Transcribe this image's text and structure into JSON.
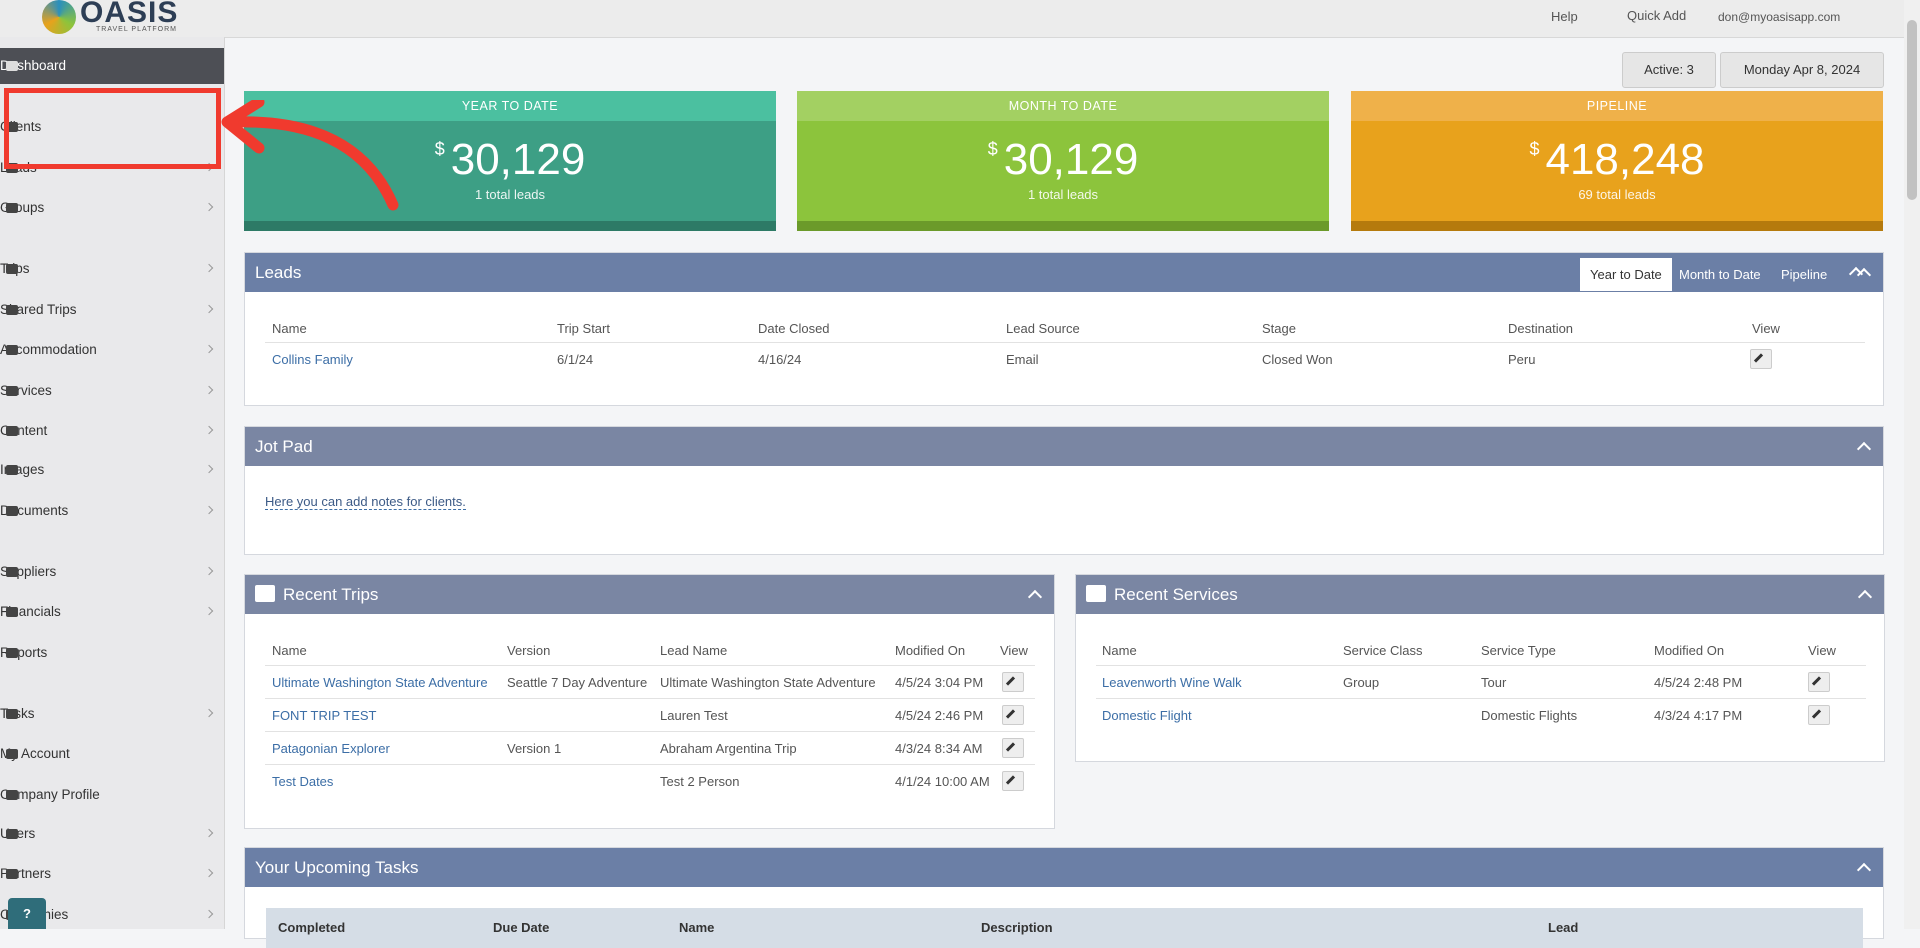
{
  "header": {
    "logo": "OASIS",
    "logo_sub": "TRAVEL PLATFORM",
    "help": "Help",
    "quick_add": "Quick Add",
    "user": "don@myoasisapp.com"
  },
  "sidebar": {
    "items": [
      "Dashboard",
      "Clients",
      "Leads",
      "Groups",
      "Trips",
      "Shared Trips",
      "Accommodation",
      "Services",
      "Content",
      "Images",
      "Documents",
      "Suppliers",
      "Financials",
      "Reports",
      "Tasks",
      "My Account",
      "Company Profile",
      "Users",
      "Partners",
      "Companies"
    ]
  },
  "toolbar": {
    "active": "Active: 3",
    "date": "Monday Apr 8, 2024"
  },
  "cards": [
    {
      "title": "YEAR TO DATE",
      "currency": "$",
      "amount": "30,129",
      "sub": "1 total leads"
    },
    {
      "title": "MONTH TO DATE",
      "currency": "$",
      "amount": "30,129",
      "sub": "1 total leads"
    },
    {
      "title": "PIPELINE",
      "currency": "$",
      "amount": "418,248",
      "sub": "69 total leads"
    }
  ],
  "leads": {
    "title": "Leads",
    "tabs": [
      "Year to Date",
      "Month to Date",
      "Pipeline"
    ],
    "columns": [
      "Name",
      "Trip Start",
      "Date Closed",
      "Lead Source",
      "Stage",
      "Destination",
      "View"
    ],
    "rows": [
      [
        "Collins Family",
        "6/1/24",
        "4/16/24",
        "Email",
        "Closed Won",
        "Peru"
      ]
    ]
  },
  "jot_pad": {
    "title": "Jot Pad",
    "text": "Here you can add notes for clients."
  },
  "recent_trips": {
    "title": "Recent Trips",
    "columns": [
      "Name",
      "Version",
      "Lead Name",
      "Modified On",
      "View"
    ],
    "rows": [
      [
        "Ultimate Washington State Adventure",
        "Seattle 7 Day Adventure",
        "Ultimate Washington State Adventure",
        "4/5/24 3:04 PM"
      ],
      [
        "FONT TRIP TEST",
        "",
        "Lauren Test",
        "4/5/24 2:46 PM"
      ],
      [
        "Patagonian Explorer",
        "Version 1",
        "Abraham Argentina Trip",
        "4/3/24 8:34 AM"
      ],
      [
        "Test Dates",
        "",
        "Test 2 Person",
        "4/1/24 10:00 AM"
      ]
    ]
  },
  "recent_services": {
    "title": "Recent Services",
    "columns": [
      "Name",
      "Service Class",
      "Service Type",
      "Modified On",
      "View"
    ],
    "rows": [
      [
        "Leavenworth Wine Walk",
        "Group",
        "Tour",
        "4/5/24 2:48 PM"
      ],
      [
        "Domestic Flight",
        "",
        "Domestic Flights",
        "4/3/24 4:17 PM"
      ]
    ]
  },
  "tasks": {
    "title": "Your Upcoming Tasks",
    "columns": [
      "Completed",
      "Due Date",
      "Name",
      "Description",
      "Lead"
    ]
  },
  "help_button": "?"
}
